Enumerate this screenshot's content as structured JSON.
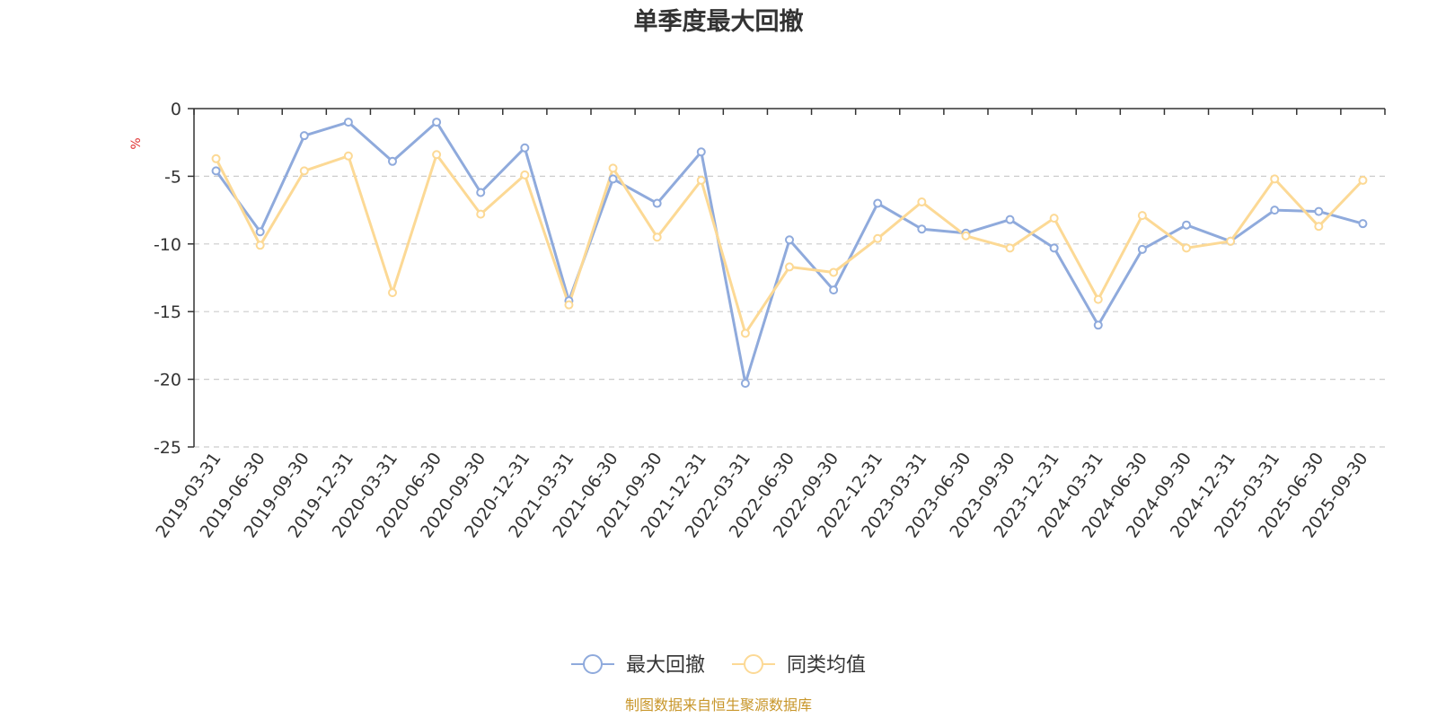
{
  "chart_data": {
    "type": "line",
    "title": "单季度最大回撤",
    "y_unit": "%",
    "ylim": [
      -25,
      0
    ],
    "y_ticks": [
      0,
      -5,
      -10,
      -15,
      -20,
      -25
    ],
    "grid": "horizontal dashed",
    "legend_position": "bottom-center",
    "categories": [
      "2019-03-31",
      "2019-06-30",
      "2019-09-30",
      "2019-12-31",
      "2020-03-31",
      "2020-06-30",
      "2020-09-30",
      "2020-12-31",
      "2021-03-31",
      "2021-06-30",
      "2021-09-30",
      "2021-12-31",
      "2022-03-31",
      "2022-06-30",
      "2022-09-30",
      "2022-12-31",
      "2023-03-31",
      "2023-06-30",
      "2023-09-30",
      "2023-12-31",
      "2024-03-31",
      "2024-06-30",
      "2024-09-30",
      "2024-12-31",
      "2025-03-31",
      "2025-06-30",
      "2025-09-30"
    ],
    "series": [
      {
        "name": "最大回撤",
        "color": "#8faadc",
        "values": [
          -4.6,
          -9.1,
          -2.0,
          -1.0,
          -3.9,
          -1.0,
          -6.2,
          -2.9,
          -14.2,
          -5.2,
          -7.0,
          -3.2,
          -20.3,
          -9.7,
          -13.4,
          -7.0,
          -8.9,
          -9.2,
          -8.2,
          -10.3,
          -16.0,
          -10.4,
          -8.6,
          -9.8,
          -7.5,
          -7.6,
          -8.5
        ]
      },
      {
        "name": "同类均值",
        "color": "#fcd995",
        "values": [
          -3.7,
          -10.1,
          -4.6,
          -3.5,
          -13.6,
          -3.4,
          -7.8,
          -4.9,
          -14.5,
          -4.4,
          -9.5,
          -5.3,
          -16.6,
          -11.7,
          -12.1,
          -9.6,
          -6.9,
          -9.4,
          -10.3,
          -8.1,
          -14.1,
          -7.9,
          -10.3,
          -9.8,
          -5.2,
          -8.7,
          -5.3
        ]
      }
    ],
    "source_note": "制图数据来自恒生聚源数据库"
  }
}
